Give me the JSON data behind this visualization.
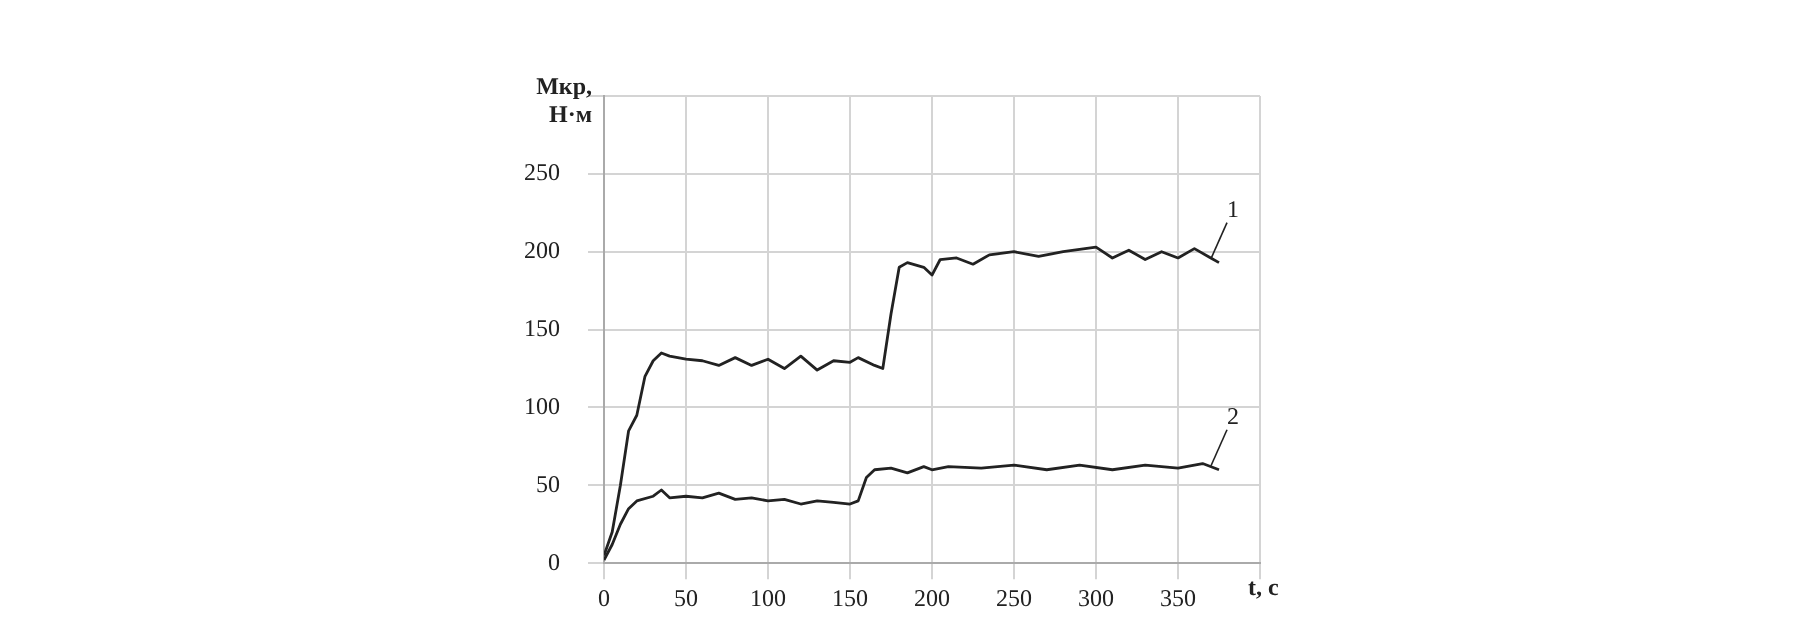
{
  "chart_data": {
    "type": "line",
    "ylabel": "Мкр,\nН·м",
    "xlabel": "t, c",
    "xlim": [
      0,
      400
    ],
    "xticks": [
      0,
      50,
      100,
      150,
      200,
      250,
      300,
      350,
      {
        "value": 400,
        "label": null
      }
    ],
    "ylim": [
      0,
      300
    ],
    "yticks": [
      0,
      50,
      100,
      150,
      200,
      250,
      {
        "value": 300,
        "label": null
      }
    ],
    "grid": true,
    "legend": false,
    "marker": "none",
    "line_style": "solid",
    "series": [
      {
        "name": "1",
        "color": "#222222",
        "x": [
          0,
          5,
          10,
          15,
          20,
          25,
          30,
          35,
          40,
          50,
          60,
          70,
          80,
          90,
          100,
          110,
          120,
          130,
          140,
          150,
          155,
          165,
          170,
          175,
          180,
          185,
          195,
          200,
          205,
          215,
          225,
          235,
          250,
          265,
          280,
          300,
          310,
          320,
          330,
          340,
          350,
          360,
          370,
          375
        ],
        "values": [
          5,
          20,
          50,
          85,
          95,
          120,
          130,
          135,
          133,
          131,
          130,
          127,
          132,
          127,
          131,
          125,
          133,
          124,
          130,
          129,
          132,
          127,
          125,
          160,
          190,
          193,
          190,
          185,
          195,
          196,
          192,
          198,
          200,
          197,
          200,
          203,
          196,
          201,
          195,
          200,
          196,
          202,
          196,
          193
        ]
      },
      {
        "name": "2",
        "color": "#222222",
        "x": [
          0,
          5,
          10,
          15,
          20,
          30,
          35,
          40,
          50,
          60,
          70,
          80,
          90,
          100,
          110,
          120,
          130,
          140,
          150,
          155,
          160,
          165,
          175,
          185,
          195,
          200,
          210,
          230,
          250,
          270,
          290,
          310,
          330,
          350,
          365,
          375
        ],
        "values": [
          2,
          12,
          25,
          35,
          40,
          43,
          47,
          42,
          43,
          42,
          45,
          41,
          42,
          40,
          41,
          38,
          40,
          39,
          38,
          40,
          55,
          60,
          61,
          58,
          62,
          60,
          62,
          61,
          63,
          60,
          63,
          60,
          63,
          61,
          64,
          60
        ]
      }
    ]
  }
}
